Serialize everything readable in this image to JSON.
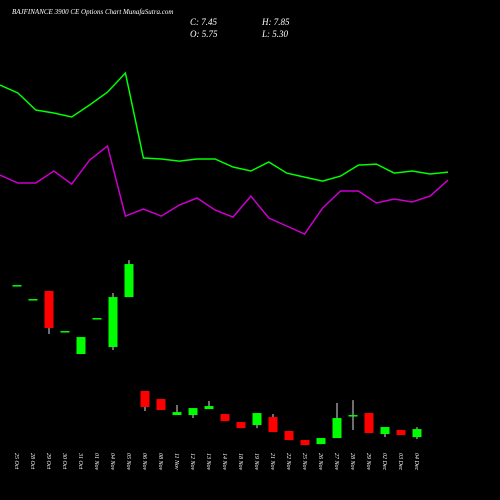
{
  "chart_data": {
    "type": "candlestick",
    "title": "BAJFINANCE 3900 CE Options Chart MunafaSutra.com",
    "info": [
      "C: 7.45",
      "H: 7.85",
      "O: 5.75",
      "L: 5.30"
    ],
    "categories": [
      "25 Oct",
      "28 Oct",
      "29 Oct",
      "30 Oct",
      "31 Oct",
      "01 Nov",
      "04 Nov",
      "05 Nov",
      "06 Nov",
      "08 Nov",
      "11 Nov",
      "12 Nov",
      "13 Nov",
      "14 Nov",
      "18 Nov",
      "19 Nov",
      "21 Nov",
      "22 Nov",
      "25 Nov",
      "26 Nov",
      "27 Nov",
      "28 Nov",
      "29 Nov",
      "02 Dec",
      "03 Dec",
      "04 Dec"
    ],
    "open": [
      38.05,
      35.08,
      36.78,
      28.28,
      23.39,
      31.04,
      24.88,
      35.5,
      15.53,
      13.83,
      10.43,
      10.43,
      11.7,
      10.64,
      8.94,
      8.3,
      10.0,
      7.03,
      5.11,
      4.26,
      5.54,
      10.43,
      10.85,
      6.39,
      7.24,
      5.75
    ],
    "high": [
      38.05,
      35.08,
      36.78,
      28.28,
      27.0,
      31.04,
      36.35,
      43.36,
      15.53,
      13.83,
      12.55,
      11.91,
      13.4,
      10.64,
      8.94,
      10.85,
      10.64,
      7.03,
      5.11,
      5.54,
      12.98,
      13.61,
      10.85,
      7.88,
      7.24,
      7.85
    ],
    "low": [
      38.05,
      35.08,
      27.64,
      28.28,
      23.39,
      31.04,
      24.24,
      35.5,
      11.28,
      11.49,
      10.43,
      9.79,
      11.7,
      9.15,
      7.66,
      7.66,
      6.81,
      5.11,
      4.05,
      4.26,
      5.54,
      7.24,
      6.6,
      5.75,
      6.18,
      5.3
    ],
    "close": [
      38.05,
      35.08,
      28.91,
      28.28,
      27.0,
      31.04,
      35.5,
      42.51,
      12.13,
      11.49,
      11.06,
      11.91,
      12.34,
      9.15,
      7.66,
      10.85,
      6.81,
      5.11,
      4.05,
      5.54,
      9.79,
      10.43,
      6.6,
      7.88,
      6.18,
      7.45
    ],
    "up_color": "#00ff00",
    "down_color": "#ff0000",
    "ylim": [
      3,
      86
    ],
    "series": [
      {
        "color": "#00ff00",
        "values": [
          80.55,
          78.85,
          75.24,
          74.6,
          73.75,
          76.3,
          79.06,
          83.1,
          65.04,
          64.83,
          64.4,
          64.83,
          64.83,
          63.13,
          62.28,
          64.19,
          61.85,
          61.0,
          60.15,
          61.21,
          63.55,
          63.76,
          61.85,
          62.28,
          61.64,
          62.06
        ]
      },
      {
        "color": "#cc00cc",
        "values": [
          61.43,
          59.73,
          59.73,
          62.28,
          59.51,
          64.61,
          67.59,
          52.71,
          54.2,
          52.71,
          55.05,
          56.54,
          53.99,
          52.5,
          56.96,
          52.29,
          50.59,
          48.89,
          54.41,
          58.03,
          58.03,
          55.48,
          56.33,
          55.69,
          56.96,
          60.36
        ]
      }
    ]
  }
}
